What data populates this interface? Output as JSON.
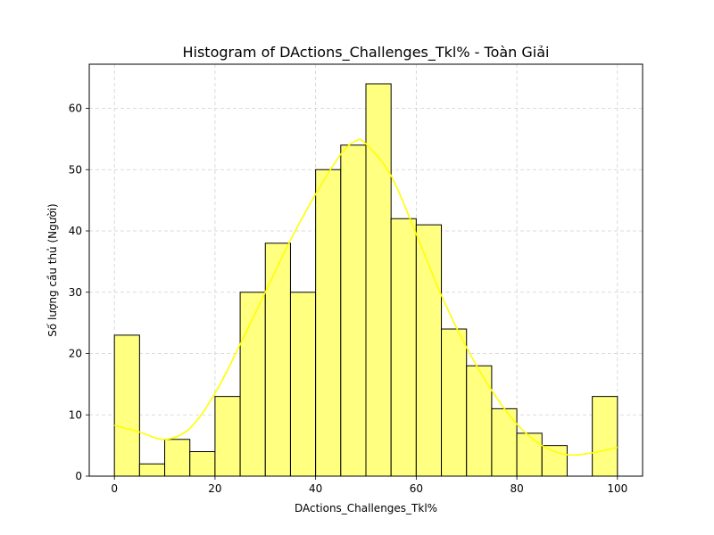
{
  "chart_data": {
    "type": "bar",
    "title": "Histogram of DActions_Challenges_Tkl% - Toàn Giải",
    "xlabel": "DActions_Challenges_Tkl%",
    "ylabel": "Số lượng cầu thủ (Người)",
    "xlim": [
      -5,
      105
    ],
    "ylim": [
      0,
      67.2
    ],
    "xticks": [
      0,
      20,
      40,
      60,
      80,
      100
    ],
    "yticks": [
      0,
      10,
      20,
      30,
      40,
      50,
      60
    ],
    "grid": true,
    "bin_edges": [
      0,
      5,
      10,
      15,
      20,
      25,
      30,
      35,
      40,
      45,
      50,
      55,
      60,
      65,
      70,
      75,
      80,
      85,
      90,
      95,
      100
    ],
    "values": [
      23,
      2,
      6,
      4,
      13,
      30,
      38,
      30,
      50,
      54,
      64,
      42,
      41,
      24,
      18,
      11,
      7,
      5,
      0,
      13
    ],
    "kde": {
      "x": [
        0,
        5,
        10,
        15,
        20,
        25,
        30,
        35,
        40,
        45,
        48,
        50,
        55,
        60,
        65,
        70,
        75,
        80,
        85,
        90,
        95,
        100
      ],
      "y": [
        8.3,
        7.2,
        6.0,
        7.8,
        13.5,
        21.5,
        30.0,
        38.5,
        46.0,
        52.5,
        54.7,
        54.2,
        49.0,
        39.5,
        29.5,
        21.0,
        14.0,
        8.5,
        5.0,
        3.5,
        3.8,
        4.7
      ]
    },
    "colors": {
      "bar_fill": "#ffff80",
      "bar_edge": "#000000",
      "kde_line": "#ffff00",
      "grid": "#d0d0d0"
    }
  }
}
